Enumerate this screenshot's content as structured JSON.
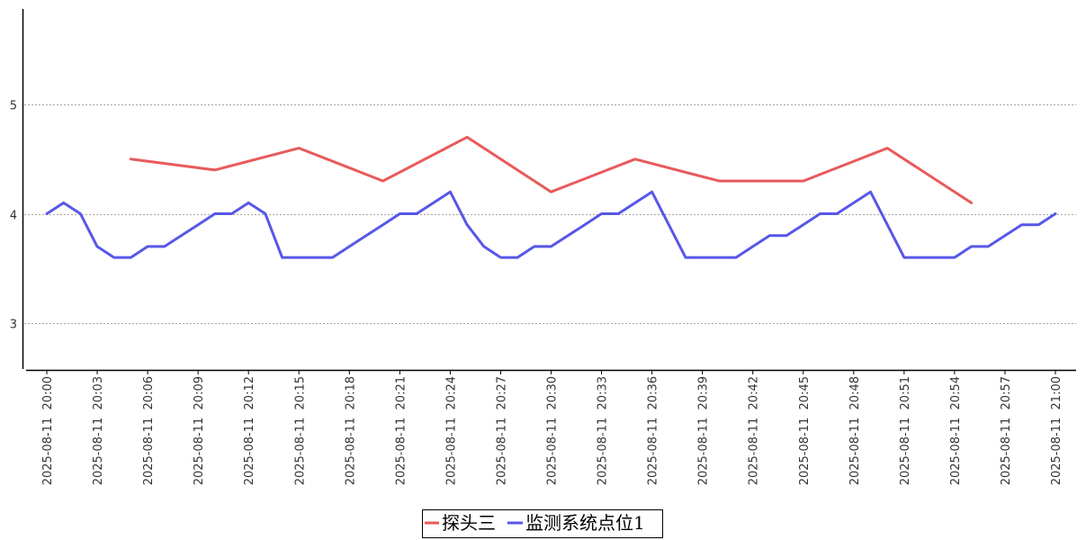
{
  "chart_data": {
    "type": "line",
    "title": "",
    "xlabel": "",
    "ylabel": "",
    "x": [
      "2025-08-11 20:00",
      "2025-08-11 20:01",
      "2025-08-11 20:02",
      "2025-08-11 20:03",
      "2025-08-11 20:04",
      "2025-08-11 20:05",
      "2025-08-11 20:06",
      "2025-08-11 20:07",
      "2025-08-11 20:08",
      "2025-08-11 20:09",
      "2025-08-11 20:10",
      "2025-08-11 20:11",
      "2025-08-11 20:12",
      "2025-08-11 20:13",
      "2025-08-11 20:14",
      "2025-08-11 20:15",
      "2025-08-11 20:16",
      "2025-08-11 20:17",
      "2025-08-11 20:18",
      "2025-08-11 20:19",
      "2025-08-11 20:20",
      "2025-08-11 20:21",
      "2025-08-11 20:22",
      "2025-08-11 20:23",
      "2025-08-11 20:24",
      "2025-08-11 20:25",
      "2025-08-11 20:26",
      "2025-08-11 20:27",
      "2025-08-11 20:28",
      "2025-08-11 20:29",
      "2025-08-11 20:30",
      "2025-08-11 20:31",
      "2025-08-11 20:32",
      "2025-08-11 20:33",
      "2025-08-11 20:34",
      "2025-08-11 20:35",
      "2025-08-11 20:36",
      "2025-08-11 20:37",
      "2025-08-11 20:38",
      "2025-08-11 20:39",
      "2025-08-11 20:40",
      "2025-08-11 20:41",
      "2025-08-11 20:42",
      "2025-08-11 20:43",
      "2025-08-11 20:44",
      "2025-08-11 20:45",
      "2025-08-11 20:46",
      "2025-08-11 20:47",
      "2025-08-11 20:48",
      "2025-08-11 20:49",
      "2025-08-11 20:50",
      "2025-08-11 20:51",
      "2025-08-11 20:52",
      "2025-08-11 20:53",
      "2025-08-11 20:54",
      "2025-08-11 20:55",
      "2025-08-11 20:56",
      "2025-08-11 20:57",
      "2025-08-11 20:58",
      "2025-08-11 20:59",
      "2025-08-11 21:00"
    ],
    "tick_labels": [
      "2025-08-11 20:00",
      "2025-08-11 20:03",
      "2025-08-11 20:06",
      "2025-08-11 20:09",
      "2025-08-11 20:12",
      "2025-08-11 20:15",
      "2025-08-11 20:18",
      "2025-08-11 20:21",
      "2025-08-11 20:24",
      "2025-08-11 20:27",
      "2025-08-11 20:30",
      "2025-08-11 20:33",
      "2025-08-11 20:36",
      "2025-08-11 20:39",
      "2025-08-11 20:42",
      "2025-08-11 20:45",
      "2025-08-11 20:48",
      "2025-08-11 20:51",
      "2025-08-11 20:54",
      "2025-08-11 20:57",
      "2025-08-11 21:00"
    ],
    "y_ticks": [
      3,
      4,
      5
    ],
    "ylim": [
      2.6,
      5.8
    ],
    "grid": "horizontal dotted",
    "legend_position": "bottom-center",
    "series": [
      {
        "name": "探头三",
        "color": "#e85a5a",
        "values": [
          null,
          null,
          null,
          null,
          null,
          4.5,
          null,
          null,
          null,
          null,
          4.4,
          null,
          null,
          null,
          null,
          4.6,
          null,
          null,
          null,
          null,
          4.3,
          null,
          null,
          null,
          null,
          4.7,
          null,
          null,
          null,
          null,
          4.2,
          null,
          null,
          null,
          null,
          4.5,
          null,
          null,
          null,
          null,
          4.3,
          null,
          null,
          null,
          null,
          4.3,
          null,
          null,
          null,
          null,
          4.6,
          null,
          null,
          null,
          null,
          4.1,
          null,
          null,
          null,
          null,
          null
        ]
      },
      {
        "name": "监测系统点位1",
        "color": "#5757e8",
        "values": [
          4.0,
          4.1,
          4.0,
          3.7,
          3.6,
          3.6,
          3.7,
          3.7,
          3.8,
          3.9,
          4.0,
          4.0,
          4.1,
          4.0,
          3.6,
          3.6,
          3.6,
          3.6,
          3.7,
          3.8,
          3.9,
          4.0,
          4.0,
          4.1,
          4.2,
          3.9,
          3.7,
          3.6,
          3.6,
          3.7,
          3.7,
          3.8,
          3.9,
          4.0,
          4.0,
          4.1,
          4.2,
          3.9,
          3.6,
          3.6,
          3.6,
          3.6,
          3.7,
          3.8,
          3.8,
          3.9,
          4.0,
          4.0,
          4.1,
          4.2,
          3.9,
          3.6,
          3.6,
          3.6,
          3.6,
          3.7,
          3.7,
          3.8,
          3.9,
          3.9,
          4.0
        ]
      }
    ]
  }
}
